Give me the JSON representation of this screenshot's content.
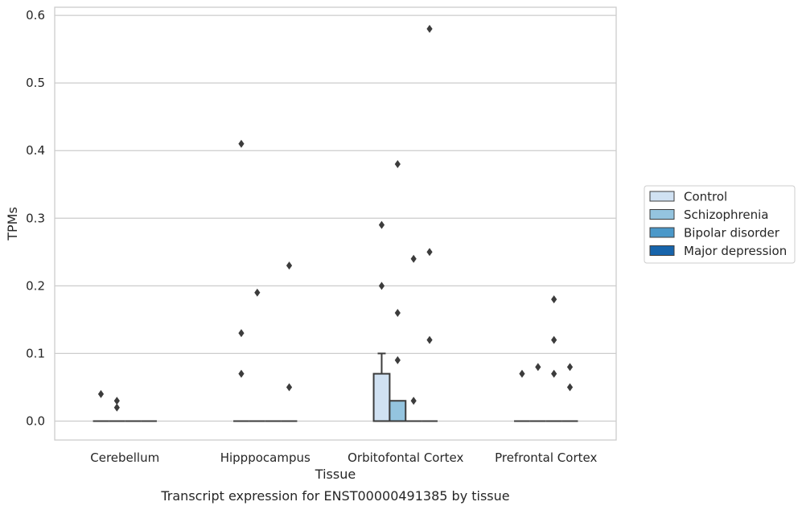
{
  "chart_data": {
    "type": "box",
    "title": "Transcript expression for ENST00000491385 by tissue",
    "xlabel": "Tissue",
    "ylabel": "TPMs",
    "ylim": [
      -0.028,
      0.612
    ],
    "yticks": [
      0.0,
      0.1,
      0.2,
      0.3,
      0.4,
      0.5,
      0.6
    ],
    "ytick_labels": [
      "0.0",
      "0.1",
      "0.2",
      "0.3",
      "0.4",
      "0.5",
      "0.6"
    ],
    "grid": "horizontal",
    "legend_position": "right",
    "categories": [
      "Cerebellum",
      "Hipppocampus",
      "Orbitofontal Cortex",
      "Prefrontal Cortex"
    ],
    "series": [
      {
        "name": "Control",
        "color": "#d0e1f2",
        "boxes": [
          {
            "category": "Cerebellum",
            "q1": 0,
            "median": 0,
            "q3": 0,
            "whisker_low": 0,
            "whisker_high": 0,
            "outliers": [
              0.04
            ]
          },
          {
            "category": "Hipppocampus",
            "q1": 0,
            "median": 0,
            "q3": 0,
            "whisker_low": 0,
            "whisker_high": 0,
            "outliers": [
              0.41,
              0.13,
              0.07
            ]
          },
          {
            "category": "Orbitofontal Cortex",
            "q1": 0,
            "median": 0,
            "q3": 0.07,
            "whisker_low": 0,
            "whisker_high": 0.1,
            "outliers": [
              0.29,
              0.2
            ]
          },
          {
            "category": "Prefrontal Cortex",
            "q1": 0,
            "median": 0,
            "q3": 0,
            "whisker_low": 0,
            "whisker_high": 0,
            "outliers": [
              0.07
            ]
          }
        ]
      },
      {
        "name": "Schizophrenia",
        "color": "#94c4df",
        "boxes": [
          {
            "category": "Cerebellum",
            "q1": 0,
            "median": 0,
            "q3": 0,
            "whisker_low": 0,
            "whisker_high": 0,
            "outliers": [
              0.03,
              0.02
            ]
          },
          {
            "category": "Hipppocampus",
            "q1": 0,
            "median": 0,
            "q3": 0,
            "whisker_low": 0,
            "whisker_high": 0,
            "outliers": [
              0.19
            ]
          },
          {
            "category": "Orbitofontal Cortex",
            "q1": 0,
            "median": 0,
            "q3": 0.03,
            "whisker_low": 0,
            "whisker_high": 0.03,
            "outliers": [
              0.38,
              0.16,
              0.09
            ]
          },
          {
            "category": "Prefrontal Cortex",
            "q1": 0,
            "median": 0,
            "q3": 0,
            "whisker_low": 0,
            "whisker_high": 0,
            "outliers": [
              0.08
            ]
          }
        ]
      },
      {
        "name": "Bipolar disorder",
        "color": "#4a98c9",
        "boxes": [
          {
            "category": "Cerebellum",
            "q1": 0,
            "median": 0,
            "q3": 0,
            "whisker_low": 0,
            "whisker_high": 0,
            "outliers": []
          },
          {
            "category": "Hipppocampus",
            "q1": 0,
            "median": 0,
            "q3": 0,
            "whisker_low": 0,
            "whisker_high": 0,
            "outliers": []
          },
          {
            "category": "Orbitofontal Cortex",
            "q1": 0,
            "median": 0,
            "q3": 0,
            "whisker_low": 0,
            "whisker_high": 0,
            "outliers": [
              0.24,
              0.03
            ]
          },
          {
            "category": "Prefrontal Cortex",
            "q1": 0,
            "median": 0,
            "q3": 0,
            "whisker_low": 0,
            "whisker_high": 0,
            "outliers": [
              0.18,
              0.12,
              0.07
            ]
          }
        ]
      },
      {
        "name": "Major depression",
        "color": "#1764ab",
        "boxes": [
          {
            "category": "Cerebellum",
            "q1": 0,
            "median": 0,
            "q3": 0,
            "whisker_low": 0,
            "whisker_high": 0,
            "outliers": []
          },
          {
            "category": "Hipppocampus",
            "q1": 0,
            "median": 0,
            "q3": 0,
            "whisker_low": 0,
            "whisker_high": 0,
            "outliers": [
              0.23,
              0.05
            ]
          },
          {
            "category": "Orbitofontal Cortex",
            "q1": 0,
            "median": 0,
            "q3": 0,
            "whisker_low": 0,
            "whisker_high": 0,
            "outliers": [
              0.58,
              0.25,
              0.12
            ]
          },
          {
            "category": "Prefrontal Cortex",
            "q1": 0,
            "median": 0,
            "q3": 0,
            "whisker_low": 0,
            "whisker_high": 0,
            "outliers": [
              0.08,
              0.05
            ]
          }
        ]
      }
    ]
  }
}
